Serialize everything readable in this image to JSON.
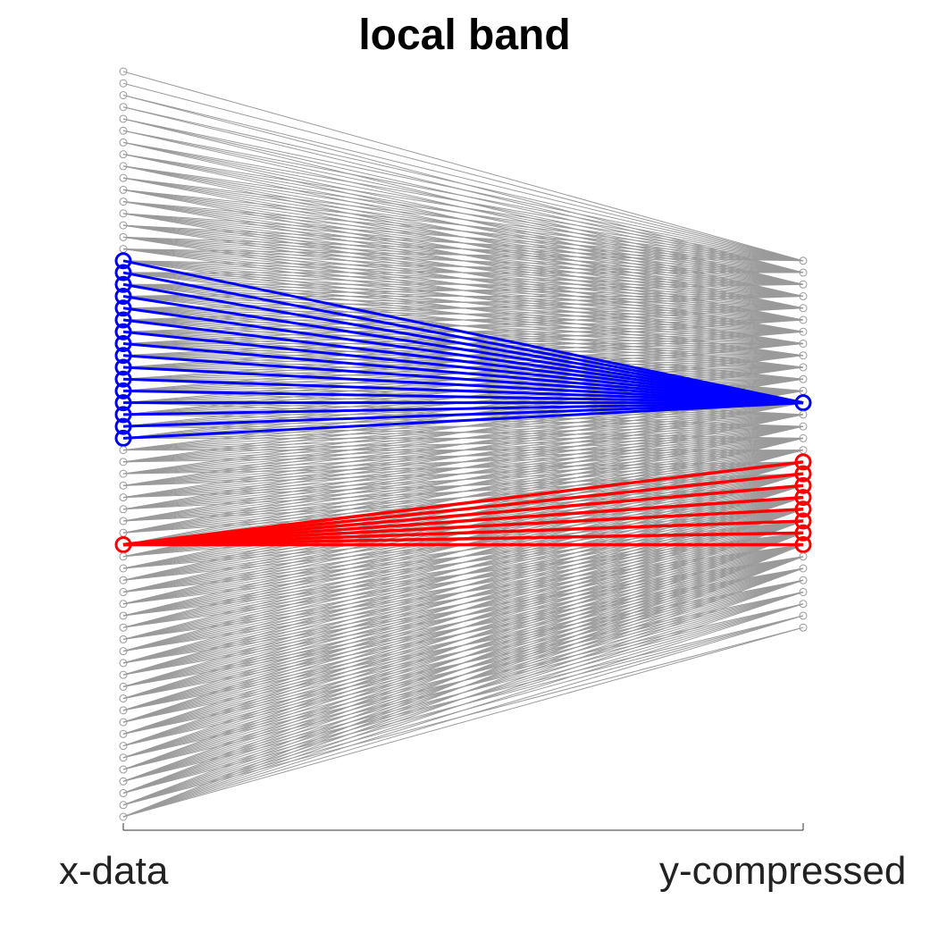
{
  "title": "local band",
  "labels": {
    "left": "x-data",
    "right": "y-compressed"
  },
  "colors": {
    "background": "#ffffff",
    "edges": "#9a9a9a",
    "highlight_a": "#0000ff",
    "highlight_b": "#ff0000"
  },
  "chart_data": {
    "type": "bipartite-network",
    "left_nodes": 64,
    "right_nodes": 32,
    "stride": 2,
    "band_width": 16,
    "highlight_a": {
      "color": "blue",
      "right_index": 12,
      "left_range": [
        16,
        31
      ]
    },
    "highlight_b": {
      "color": "red",
      "left_index": 40,
      "right_range": [
        17,
        24
      ]
    }
  }
}
